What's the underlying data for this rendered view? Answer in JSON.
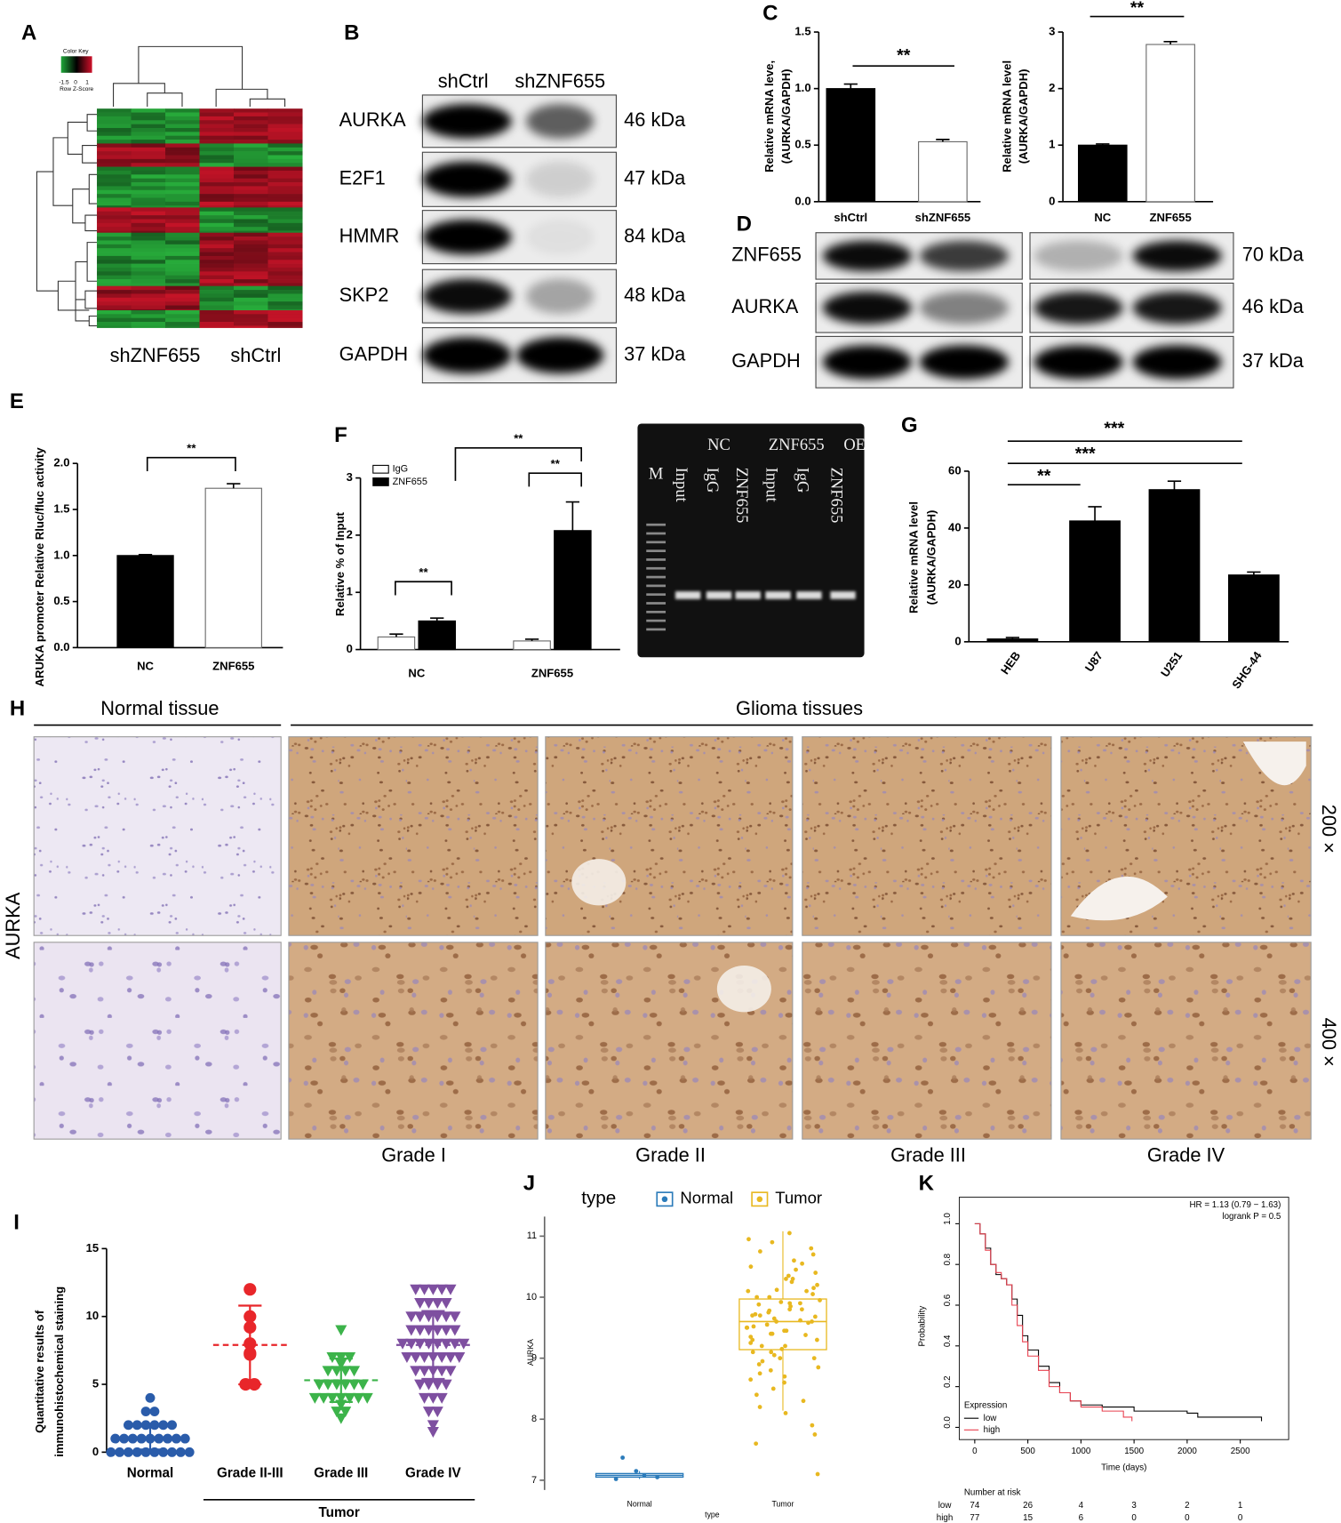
{
  "heatmap": {
    "letter": "A",
    "color_key": "Color Key",
    "key_ticks": [
      -1.5,
      0,
      1
    ],
    "key_label": "Row Z-Score",
    "columns": [
      "shZNF655",
      "shCtrl"
    ]
  },
  "blot_b": {
    "letter": "B",
    "lanes": [
      "shCtrl",
      "shZNF655"
    ],
    "rows": [
      {
        "protein": "AURKA",
        "size": "46 kDa"
      },
      {
        "protein": "E2F1",
        "size": "47 kDa"
      },
      {
        "protein": "HMMR",
        "size": "84 kDa"
      },
      {
        "protein": "SKP2",
        "size": "48 kDa"
      },
      {
        "protein": "GAPDH",
        "size": "37 kDa"
      }
    ]
  },
  "blot_d": {
    "letter": "D",
    "rows": [
      {
        "protein": "ZNF655",
        "size": "70 kDa"
      },
      {
        "protein": "AURKA",
        "size": "46 kDa"
      },
      {
        "protein": "GAPDH",
        "size": "37 kDa"
      }
    ]
  },
  "gel": {
    "marker": "M",
    "groups": [
      "NC",
      "ZNF655",
      "OE"
    ],
    "lanes": [
      "Input",
      "IgG",
      "ZNF655",
      "Input",
      "IgG",
      "ZNF655"
    ]
  },
  "ihc": {
    "letter": "H",
    "stain": "AURKA",
    "normal": "Normal tissue",
    "tumor": "Glioma tissues",
    "magnifications": [
      "200 ×",
      "400 ×"
    ],
    "grades": [
      "Grade I",
      "Grade II",
      "Grade III",
      "Grade IV"
    ]
  },
  "chart_data": [
    {
      "type": "bar",
      "letter": "C",
      "ylabel": [
        "Relative mRNA leve,",
        "(AURKA/GAPDH)"
      ],
      "categories": [
        "shCtrl",
        "shZNF655"
      ],
      "values": [
        1.0,
        0.53
      ],
      "errors": [
        0.04,
        0.02
      ],
      "colors": [
        "#000000",
        "#ffffff"
      ],
      "ylim": [
        0,
        1.5
      ],
      "yticks": [
        {
          "value": 0,
          "label": "0.0"
        },
        0.5,
        {
          "value": 1,
          "label": "1.0"
        },
        1.5
      ],
      "annotations": [
        "**"
      ]
    },
    {
      "type": "bar",
      "ylabel": [
        "Relative mRNA level",
        "(AURKA/GAPDH)"
      ],
      "categories": [
        "NC",
        "ZNF655"
      ],
      "values": [
        1.0,
        2.78
      ],
      "errors": [
        0.02,
        0.05
      ],
      "colors": [
        "#000000",
        "#ffffff"
      ],
      "ylim": [
        0,
        3
      ],
      "yticks": [
        0,
        1,
        2,
        3
      ],
      "annotations": [
        "**"
      ]
    },
    {
      "type": "bar",
      "letter": "E",
      "ylabel": [
        "ARUKA promoter Relative  Rluc/fluc activity"
      ],
      "categories": [
        "NC",
        "ZNF655"
      ],
      "values": [
        1.0,
        1.73
      ],
      "errors": [
        0.01,
        0.05
      ],
      "colors": [
        "#000000",
        "#ffffff"
      ],
      "ylim": [
        0,
        2
      ],
      "yticks": [
        {
          "value": 0,
          "label": "0.0"
        },
        0.5,
        {
          "value": 1,
          "label": "1.0"
        },
        1.5,
        {
          "value": 2,
          "label": "2.0"
        }
      ],
      "annotations": [
        "**"
      ]
    },
    {
      "type": "grouped_bar",
      "letter": "F",
      "ylabel": [
        "Relative % of Input"
      ],
      "categories": [
        "NC",
        "ZNF655"
      ],
      "series": [
        {
          "name": "IgG",
          "color": "#ffffff",
          "values": [
            0.22,
            0.15
          ],
          "errors": [
            0.05,
            0.03
          ]
        },
        {
          "name": "ZNF655",
          "color": "#000000",
          "values": [
            0.5,
            2.08
          ],
          "errors": [
            0.05,
            0.5
          ]
        }
      ],
      "ylim": [
        0,
        3
      ],
      "yticks": [
        0,
        1,
        2,
        3
      ],
      "annotations": [
        "**",
        "**",
        "**"
      ]
    },
    {
      "type": "bar",
      "letter": "G",
      "ylabel": [
        "Relative mRNA level",
        "(AURKA/GAPDH)"
      ],
      "categories": [
        "HEB",
        "U87",
        "U251",
        "SHG-44"
      ],
      "values": [
        1,
        42.5,
        53.5,
        23.5
      ],
      "errors": [
        0.5,
        5,
        3,
        1
      ],
      "colors": [
        "#000000",
        "#000000",
        "#000000",
        "#000000"
      ],
      "ylim": [
        0,
        60
      ],
      "yticks": [
        0,
        20,
        40,
        60
      ],
      "annotations": [
        "**",
        "***",
        "***"
      ]
    },
    {
      "type": "dot",
      "letter": "I",
      "ylabel": [
        "Quantitative results of",
        "immunohistochemical staining"
      ],
      "categories": [
        "Normal",
        "Grade II-III",
        "Grade III",
        "Grade IV"
      ],
      "group_label": "Tumor",
      "ylim": [
        0,
        15
      ],
      "yticks": [
        0,
        5,
        10,
        15
      ],
      "groups": [
        {
          "color": "#2a5caa",
          "marker": "circle",
          "mean": 1.1,
          "sd": 0.9,
          "values": [
            4,
            3,
            3,
            2,
            2,
            2,
            2,
            2,
            2,
            1,
            1,
            1,
            1,
            1,
            1,
            1,
            1,
            1,
            0,
            0,
            0,
            0,
            0,
            0,
            0,
            0,
            0,
            0
          ]
        },
        {
          "color": "#e8262a",
          "marker": "circle",
          "mean": 7.9,
          "sd": 2.9,
          "values": [
            12,
            10,
            9.2,
            8,
            7.3,
            7.2,
            5,
            5
          ]
        },
        {
          "color": "#3cb34a",
          "marker": "triangle-down",
          "mean": 5.3,
          "sd": 1.6,
          "values": [
            9,
            7,
            7,
            7,
            6.5,
            6,
            6,
            6,
            6,
            5,
            5,
            5,
            5,
            5,
            5,
            4,
            4,
            4,
            4,
            4,
            4,
            4,
            3.5,
            3,
            3,
            2.5
          ]
        },
        {
          "color": "#7e4fa0",
          "marker": "triangle-down",
          "mean": 7.9,
          "sd": 2.5,
          "values": [
            12,
            12,
            12,
            12,
            12,
            11,
            11,
            11,
            11,
            10,
            10,
            10,
            10,
            10,
            10,
            9,
            9,
            9,
            9,
            9,
            9,
            8,
            8,
            8,
            8,
            8,
            8,
            8,
            8,
            7,
            7,
            7,
            7,
            7,
            7,
            7,
            6,
            6,
            6,
            6,
            6,
            5,
            5,
            5,
            5,
            4,
            4,
            4,
            3,
            3,
            2,
            1.5
          ]
        }
      ]
    },
    {
      "type": "box",
      "letter": "J",
      "legend_title": "type",
      "xlabel": "type",
      "ylabel": "AURKA",
      "categories": [
        "Normal",
        "Tumor"
      ],
      "ylim": [
        6.84,
        11.32
      ],
      "yticks": [
        7,
        8,
        9,
        10,
        11
      ],
      "series": [
        {
          "name": "Normal",
          "color": "#2b7bba",
          "q1": 7.05,
          "median": 7.08,
          "q3": 7.11,
          "whisker_low": 7.02,
          "whisker_high": 7.15,
          "points": [
            7.02,
            7.05,
            7.08,
            7.15,
            7.37
          ]
        },
        {
          "name": "Tumor",
          "color": "#e8b820",
          "q1": 9.14,
          "median": 9.6,
          "q3": 9.97,
          "whisker_low": 8.14,
          "whisker_high": 11.08,
          "points": [
            11.05,
            10.95,
            10.9,
            10.8,
            10.75,
            10.7,
            10.6,
            10.55,
            10.5,
            10.45,
            10.4,
            10.35,
            10.3,
            10.3,
            10.25,
            10.2,
            10.15,
            10.1,
            10.1,
            10.05,
            10.0,
            10.0,
            9.95,
            9.9,
            9.9,
            9.85,
            9.8,
            9.8,
            9.75,
            9.7,
            9.7,
            9.65,
            9.6,
            9.6,
            9.55,
            9.5,
            9.5,
            9.45,
            9.45,
            9.4,
            9.4,
            9.35,
            9.3,
            9.3,
            9.25,
            9.2,
            9.2,
            9.15,
            9.1,
            9.1,
            9.05,
            9.0,
            9.0,
            8.95,
            8.9,
            8.85,
            8.8,
            8.75,
            8.7,
            8.65,
            8.6,
            8.5,
            8.4,
            8.3,
            8.2,
            8.1,
            7.9,
            7.75,
            7.6,
            7.1,
            9.62,
            9.72,
            9.88,
            10.12,
            9.38,
            9.52,
            9.58,
            9.68,
            9.78,
            9.92
          ]
        }
      ]
    },
    {
      "type": "survival",
      "letter": "K",
      "xlabel": "Time (days)",
      "ylabel": "Probability",
      "legend_title": "Expression",
      "annotations": [
        "HR = 1.13 (0.79 − 1.63)",
        "logrank P = 0.5"
      ],
      "xlim": [
        -146,
        2956
      ],
      "ylim": [
        -0.06,
        1.13
      ],
      "xticks": [
        0,
        500,
        1000,
        1500,
        2000,
        2500
      ],
      "yticks": [
        {
          "value": 0,
          "label": "0.0"
        },
        0.2,
        0.4,
        0.6,
        0.8,
        {
          "value": 1,
          "label": "1.0"
        }
      ],
      "series": [
        {
          "name": "low",
          "color": "#000000",
          "x": [
            0,
            50,
            100,
            150,
            200,
            250,
            300,
            350,
            400,
            450,
            500,
            600,
            700,
            800,
            900,
            1000,
            1200,
            1500,
            2000,
            2100,
            2700
          ],
          "y": [
            1,
            0.95,
            0.88,
            0.8,
            0.75,
            0.73,
            0.7,
            0.63,
            0.55,
            0.45,
            0.38,
            0.3,
            0.22,
            0.17,
            0.13,
            0.11,
            0.1,
            0.08,
            0.07,
            0.05,
            0.03
          ]
        },
        {
          "name": "high",
          "color": "#e8404f",
          "x": [
            0,
            50,
            100,
            150,
            200,
            250,
            300,
            350,
            400,
            450,
            500,
            600,
            700,
            800,
            900,
            1000,
            1200,
            1400,
            1480
          ],
          "y": [
            1,
            0.95,
            0.87,
            0.8,
            0.76,
            0.73,
            0.7,
            0.6,
            0.5,
            0.42,
            0.35,
            0.28,
            0.2,
            0.17,
            0.13,
            0.1,
            0.08,
            0.05,
            0.03
          ]
        }
      ],
      "risk_table": {
        "title": "Number at risk",
        "rows": [
          {
            "name": "low",
            "color": "#000000",
            "values": [
              74,
              26,
              4,
              3,
              2,
              1
            ]
          },
          {
            "name": "high",
            "color": "#e8404f",
            "values": [
              77,
              15,
              6,
              0,
              0,
              0
            ]
          }
        ]
      }
    }
  ]
}
